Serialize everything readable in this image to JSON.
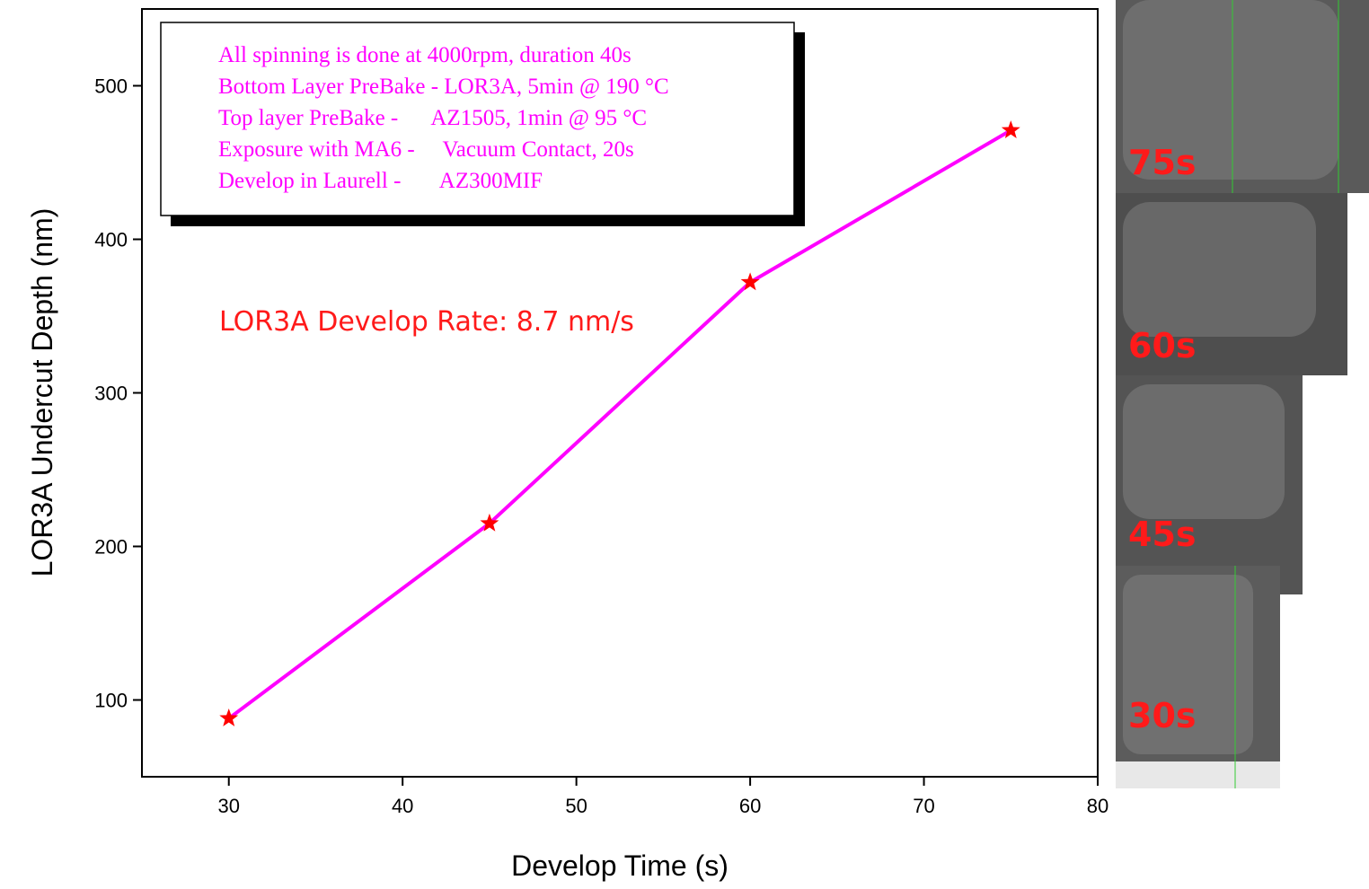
{
  "chart_data": {
    "type": "line",
    "x_label": "Develop Time (s)",
    "y_label": "LOR3A Undercut Depth (nm)",
    "x": [
      30,
      45,
      60,
      75
    ],
    "values": [
      88,
      215,
      372,
      471
    ],
    "color": "#ff00ff",
    "marker_color": "#ff0000",
    "xlim": [
      25,
      80
    ],
    "xticks": [
      30,
      40,
      50,
      60,
      70,
      80
    ],
    "ylim": [
      50,
      550
    ],
    "yticks": [
      100,
      200,
      300,
      400,
      500
    ],
    "notes": [
      "All spinning is done at 4000rpm, duration 40s",
      "Bottom Layer PreBake - LOR3A, 5min @ 190 °C",
      "Top layer PreBake -      AZ1505, 1min @ 95 °C",
      "Exposure with MA6 -     Vacuum Contact, 20s",
      "Develop in Laurell -       AZ300MIF"
    ],
    "annotation": "LOR3A Develop Rate: 8.7 nm/s"
  },
  "sem_images": [
    {
      "label": "75s"
    },
    {
      "label": "60s"
    },
    {
      "label": "45s"
    },
    {
      "label": "30s"
    }
  ]
}
